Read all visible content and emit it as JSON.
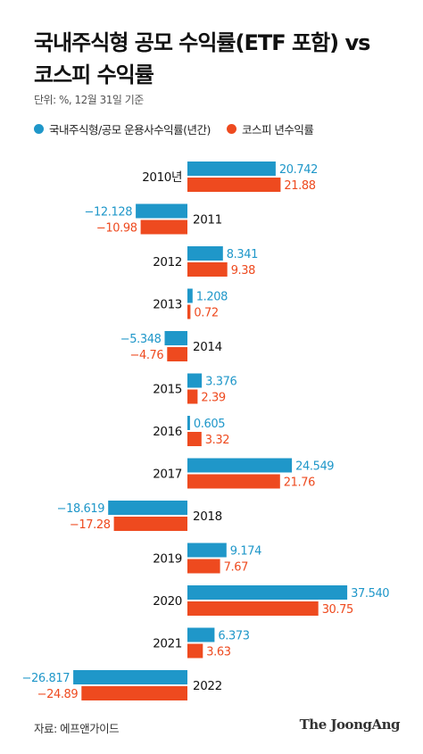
{
  "header": {
    "title_line1": "국내주식형 공모 수익률(ETF 포함) vs",
    "title_line2": "코스피 수익률",
    "unit": "단위: %, 12월 31일 기준"
  },
  "legend": {
    "fund_label": "국내주식형/공모 운용사수익률(년간)",
    "kospi_label": "코스피 년수익률"
  },
  "colors": {
    "fund": "#1f97c9",
    "kospi": "#ee4a1f"
  },
  "footer": {
    "source": "자료: 에프앤가이드",
    "brand": "The JoongAng"
  },
  "chart_data": {
    "type": "bar",
    "orientation": "horizontal",
    "categories": [
      "2010년",
      "2011",
      "2012",
      "2013",
      "2014",
      "2015",
      "2016",
      "2017",
      "2018",
      "2019",
      "2020",
      "2021",
      "2022"
    ],
    "series": [
      {
        "name": "국내주식형/공모 운용사수익률(년간)",
        "values": [
          20.742,
          -12.128,
          8.341,
          1.208,
          -5.348,
          3.376,
          0.605,
          24.549,
          -18.619,
          9.174,
          37.54,
          6.373,
          -26.817
        ],
        "labels": [
          "20.742",
          "-12.128",
          "8.341",
          "1.208",
          "-5.348",
          "3.376",
          "0.605",
          "24.549",
          "-18.619",
          "9.174",
          "37.540",
          "6.373",
          "-26.817"
        ]
      },
      {
        "name": "코스피 년수익률",
        "values": [
          21.88,
          -10.98,
          9.38,
          0.72,
          -4.76,
          2.39,
          3.32,
          21.76,
          -17.28,
          7.67,
          30.75,
          3.63,
          -24.89
        ],
        "labels": [
          "21.88",
          "-10.98",
          "9.38",
          "0.72",
          "-4.76",
          "2.39",
          "3.32",
          "21.76",
          "-17.28",
          "7.67",
          "30.75",
          "3.63",
          "-24.89"
        ]
      }
    ],
    "xlim": [
      -27,
      38
    ],
    "grid": false,
    "legend_position": "top-left"
  }
}
